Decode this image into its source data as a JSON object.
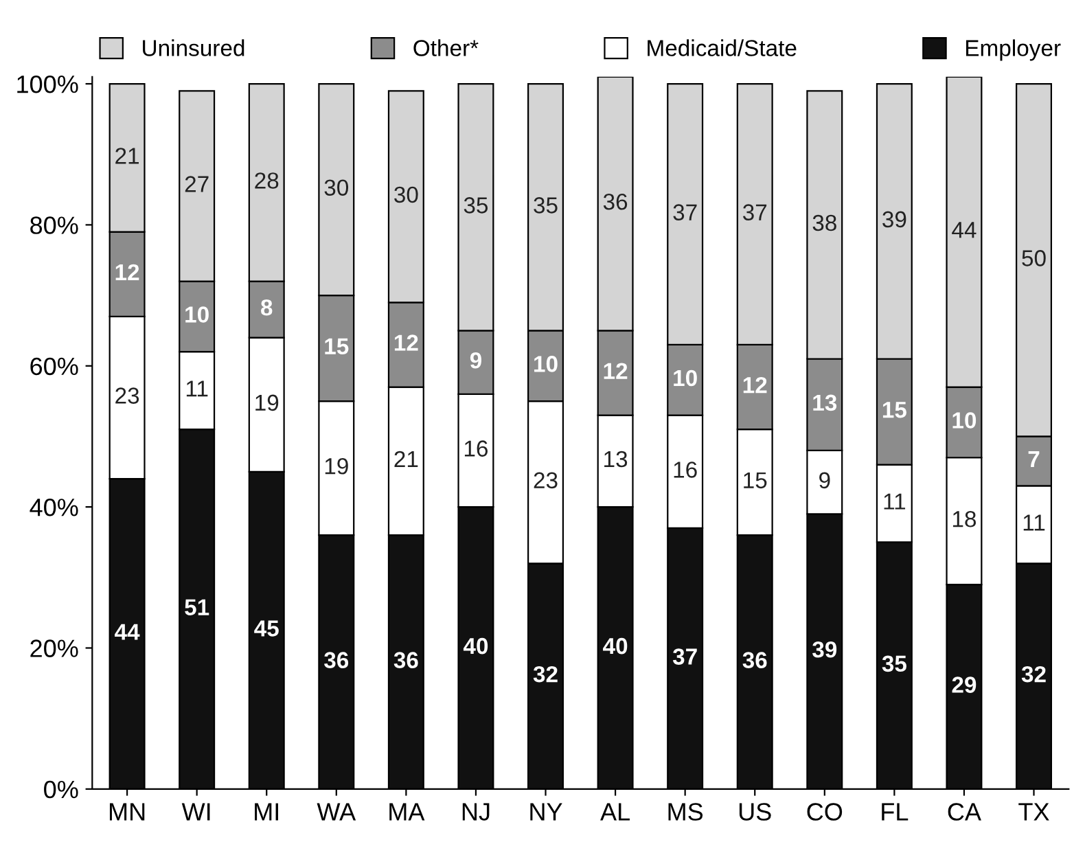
{
  "chart_data": {
    "type": "bar",
    "stacked": true,
    "data_labels": true,
    "legend": "top",
    "grid": false,
    "categories": [
      "MN",
      "WI",
      "MI",
      "WA",
      "MA",
      "NJ",
      "NY",
      "AL",
      "MS",
      "US",
      "CO",
      "FL",
      "CA",
      "TX"
    ],
    "ylim": [
      0,
      101
    ],
    "yticks": [
      {
        "value": 0,
        "label": "0%"
      },
      {
        "value": 20,
        "label": "20%"
      },
      {
        "value": 40,
        "label": "40%"
      },
      {
        "value": 60,
        "label": "60%"
      },
      {
        "value": 80,
        "label": "80%"
      },
      {
        "value": 100,
        "label": "100%"
      }
    ],
    "series": [
      {
        "name": "Employer",
        "color": "#111111",
        "values": [
          44,
          51,
          45,
          36,
          36,
          40,
          32,
          40,
          37,
          36,
          39,
          35,
          29,
          32
        ]
      },
      {
        "name": "Medicaid/State",
        "color": "#ffffff",
        "values": [
          23,
          11,
          19,
          19,
          21,
          16,
          23,
          13,
          16,
          15,
          9,
          11,
          18,
          11
        ]
      },
      {
        "name": "Other*",
        "color": "#8c8c8c",
        "values": [
          12,
          10,
          8,
          15,
          12,
          9,
          10,
          12,
          10,
          12,
          13,
          15,
          10,
          7
        ]
      },
      {
        "name": "Uninsured",
        "color": "#d4d4d4",
        "values": [
          21,
          27,
          28,
          30,
          30,
          35,
          35,
          36,
          37,
          37,
          38,
          39,
          44,
          50
        ]
      }
    ]
  }
}
